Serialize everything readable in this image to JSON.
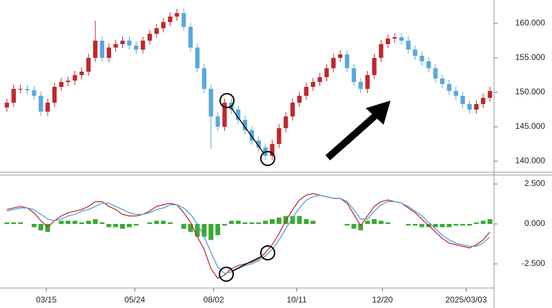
{
  "chart_data": [
    {
      "type": "candlestick",
      "up_color": "#c0282d",
      "down_color": "#5aa7dd",
      "ylim": [
        138.4,
        162.9
      ],
      "yticks": [
        {
          "value": 140,
          "label": "140.000"
        },
        {
          "value": 145,
          "label": "145.000"
        },
        {
          "value": 150,
          "label": "150.000"
        },
        {
          "value": 155,
          "label": "155.000"
        },
        {
          "value": 160,
          "label": "160.000"
        }
      ],
      "open": [
        147.8,
        148.5,
        150.5,
        150.5,
        150.3,
        149.5,
        147.2,
        148.5,
        150.8,
        151.5,
        151.7,
        152.5,
        153,
        155,
        157.5,
        155,
        156.5,
        157,
        157.5,
        156.8,
        156.2,
        157.5,
        158.5,
        159.3,
        160.2,
        161,
        161.5,
        159.5,
        156.5,
        153.5,
        150.5,
        146.5,
        145,
        148.5,
        147.5,
        146,
        144.5,
        143,
        142,
        140.8,
        142.5,
        144.8,
        146.5,
        148.5,
        149.5,
        150.8,
        151.5,
        152.2,
        153.5,
        155,
        155.5,
        153.5,
        151.5,
        150.5,
        152.5,
        155,
        157,
        157.8,
        158,
        157.5,
        156.2,
        155.3,
        154.5,
        153.5,
        152,
        151.2,
        150.2,
        149.5,
        148.3,
        147.5,
        148.3,
        149.2
      ],
      "high": [
        149.1,
        151.1,
        151.1,
        151.1,
        150.9,
        150.1,
        149.1,
        151.4,
        152.1,
        152.3,
        153.1,
        153.6,
        155.6,
        160.4,
        158.1,
        157.1,
        157.6,
        158.1,
        158.1,
        157.4,
        158.1,
        159.1,
        159.9,
        160.8,
        161.6,
        162.1,
        162.1,
        160.1,
        157.1,
        154.1,
        151.1,
        147.1,
        149.1,
        149.1,
        148.1,
        146.6,
        145.1,
        143.6,
        142.6,
        143.1,
        145.4,
        147.1,
        149.1,
        150.1,
        151.4,
        152.1,
        152.8,
        154.1,
        155.6,
        156.1,
        156.1,
        154.1,
        152.1,
        153.1,
        155.6,
        157.6,
        158.4,
        158.6,
        158.6,
        158.1,
        156.8,
        155.9,
        155.1,
        154.1,
        152.6,
        151.8,
        150.8,
        150.1,
        148.9,
        148.9,
        149.8,
        150.8
      ],
      "low": [
        147.2,
        147.9,
        149.9,
        149.7,
        148.9,
        146.6,
        146.6,
        147.9,
        150.2,
        150.9,
        151.1,
        151.9,
        152.4,
        154.4,
        154.4,
        154.4,
        155.9,
        156.4,
        156.2,
        155.6,
        155.6,
        156.9,
        157.9,
        158.7,
        159.6,
        160.4,
        158.9,
        155.9,
        152.9,
        149.9,
        141.8,
        144.4,
        144.4,
        146.9,
        145.4,
        143.9,
        142.4,
        141.4,
        140.2,
        140.2,
        141.9,
        144.2,
        145.9,
        147.9,
        148.9,
        150.2,
        150.9,
        151.6,
        152.9,
        154.4,
        152.9,
        150.9,
        149.9,
        149.9,
        151.9,
        154.4,
        156.4,
        157.2,
        156.9,
        155.6,
        154.7,
        153.9,
        152.9,
        151.4,
        150.6,
        149.6,
        148.9,
        147.7,
        146.9,
        146.9,
        147.7,
        148.6
      ],
      "close": [
        148.5,
        150.5,
        150.5,
        150.3,
        149.5,
        147.2,
        148.5,
        150.8,
        151.5,
        151.7,
        152.5,
        153,
        155,
        157.5,
        155,
        156.5,
        157,
        157.5,
        156.8,
        156.2,
        157.5,
        158.5,
        159.3,
        160.2,
        161,
        161.5,
        159.5,
        156.5,
        153.5,
        150.5,
        146.5,
        145,
        148.5,
        147.5,
        146,
        144.5,
        143,
        142,
        140.8,
        142.5,
        144.8,
        146.5,
        148.5,
        149.5,
        150.8,
        151.5,
        152.2,
        153.5,
        155,
        155.5,
        153.5,
        151.5,
        150.5,
        152.5,
        155,
        157,
        157.8,
        158,
        157.5,
        156.2,
        155.3,
        154.5,
        153.5,
        152,
        151.2,
        150.2,
        149.5,
        148.3,
        147.5,
        148.3,
        149.2,
        150.2
      ]
    },
    {
      "type": "macd",
      "ylim": [
        -3.88,
        2.89
      ],
      "yticks": [
        {
          "value": -2.5,
          "label": "-2.500"
        },
        {
          "value": 0,
          "label": "0.000"
        },
        {
          "value": 2.5,
          "label": "2.500"
        }
      ],
      "xticks": [
        {
          "value": 5.8,
          "label": "03/15"
        },
        {
          "value": 18.8,
          "label": "05/24"
        },
        {
          "value": 30.4,
          "label": "08/02"
        },
        {
          "value": 42.6,
          "label": "10/11"
        },
        {
          "value": 55.2,
          "label": "12/20"
        },
        {
          "value": 67.5,
          "label": "2025/03/03"
        }
      ],
      "histogram": {
        "color": "#3aa832",
        "values": [
          0.1,
          0.1,
          0.1,
          0,
          -0.2,
          -0.4,
          -0.5,
          0,
          0.2,
          0.2,
          0.2,
          0.1,
          0.2,
          0.3,
          0.1,
          -0.2,
          -0.2,
          -0.3,
          -0.2,
          -0.1,
          0,
          0.1,
          0.2,
          0.2,
          0.1,
          0,
          -0.3,
          -0.5,
          -0.8,
          -0.8,
          -1.0,
          -0.7,
          -0.1,
          0.2,
          0.2,
          0.1,
          0.1,
          0.1,
          0.2,
          0.3,
          0.4,
          0.5,
          0.5,
          0.5,
          0.3,
          0.2,
          0,
          0,
          0,
          0,
          -0.1,
          -0.3,
          -0.4,
          0.2,
          0.3,
          0.2,
          0.1,
          0,
          0,
          -0.1,
          -0.1,
          -0.2,
          -0.2,
          -0.2,
          -0.2,
          -0.2,
          -0.1,
          -0.1,
          -0.1,
          0.1,
          0.2,
          0.3
        ]
      },
      "series": [
        {
          "color": "#c0282d",
          "values": [
            0.9,
            1.0,
            1.1,
            1.0,
            0.7,
            0.2,
            -0.2,
            0.2,
            0.5,
            0.7,
            0.8,
            0.9,
            1.1,
            1.4,
            1.4,
            1.1,
            0.9,
            0.6,
            0.5,
            0.5,
            0.6,
            0.8,
            1.1,
            1.2,
            1.3,
            1.2,
            0.7,
            0.1,
            -0.8,
            -1.6,
            -2.8,
            -3.4,
            -3.2,
            -2.8,
            -2.6,
            -2.5,
            -2.4,
            -2.2,
            -1.8,
            -1.3,
            -0.6,
            0.2,
            0.9,
            1.5,
            1.8,
            1.9,
            1.8,
            1.7,
            1.6,
            1.6,
            1.3,
            0.6,
            -0.1,
            0.5,
            1.1,
            1.4,
            1.5,
            1.4,
            1.3,
            1.0,
            0.7,
            0.3,
            -0.1,
            -0.5,
            -0.9,
            -1.2,
            -1.3,
            -1.4,
            -1.5,
            -1.3,
            -1.0,
            -0.5
          ]
        },
        {
          "color": "#4a9fd8",
          "values": [
            0.8,
            0.9,
            1.0,
            1.0,
            0.9,
            0.6,
            0.3,
            0.2,
            0.3,
            0.5,
            0.6,
            0.8,
            0.9,
            1.1,
            1.3,
            1.3,
            1.1,
            0.9,
            0.7,
            0.6,
            0.6,
            0.7,
            0.9,
            1.0,
            1.2,
            1.2,
            1.0,
            0.6,
            0.0,
            -0.8,
            -1.8,
            -2.7,
            -3.1,
            -3.0,
            -2.8,
            -2.6,
            -2.5,
            -2.3,
            -2.0,
            -1.6,
            -1.0,
            -0.3,
            0.4,
            1.0,
            1.5,
            1.7,
            1.8,
            1.7,
            1.6,
            1.6,
            1.4,
            0.9,
            0.3,
            0.3,
            0.8,
            1.2,
            1.4,
            1.4,
            1.3,
            1.1,
            0.8,
            0.5,
            0.1,
            -0.3,
            -0.7,
            -1.0,
            -1.2,
            -1.3,
            -1.4,
            -1.4,
            -1.2,
            -0.8
          ]
        }
      ]
    }
  ]
}
